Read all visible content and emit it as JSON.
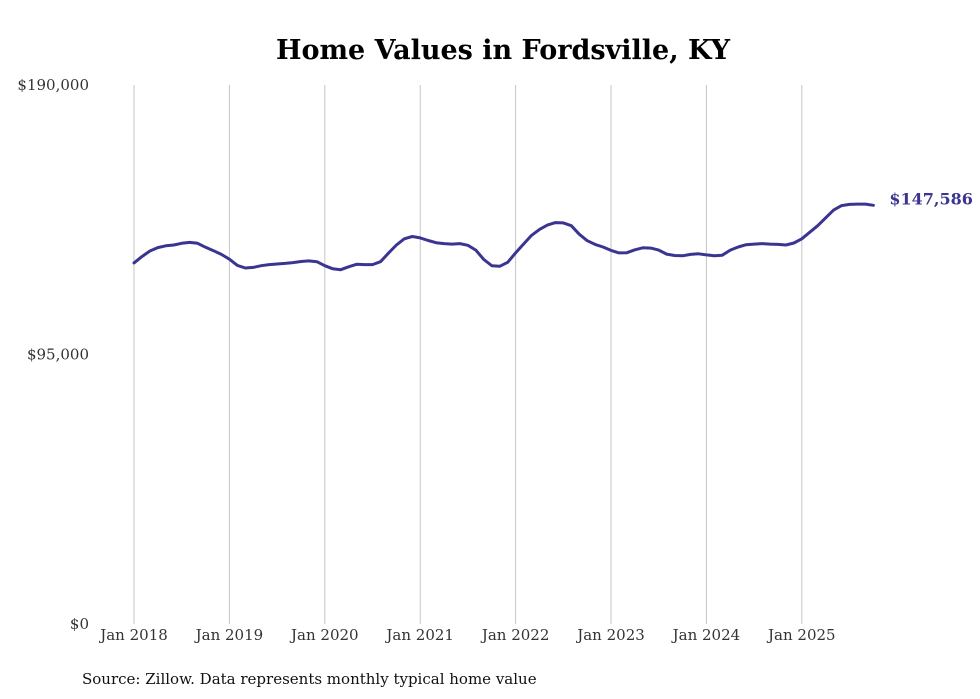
{
  "chart_data": {
    "type": "line",
    "title": "Home Values in Fordsville, KY",
    "xlabel": "",
    "ylabel": "",
    "ylim": [
      0,
      190000
    ],
    "y_ticks": [
      "$0",
      "$95,000",
      "$190,000"
    ],
    "x_ticks": [
      "Jan 2018",
      "Jan 2019",
      "Jan 2020",
      "Jan 2021",
      "Jan 2022",
      "Jan 2023",
      "Jan 2024",
      "Jan 2025"
    ],
    "grid": "vertical lines at each January",
    "line_color": "#3a3591",
    "end_label": "$147,586",
    "source_note": "Source: Zillow. Data represents monthly typical home value",
    "series": [
      {
        "x": [
          "2018-01",
          "2018-02",
          "2018-03",
          "2018-04",
          "2018-05",
          "2018-06",
          "2018-07",
          "2018-08",
          "2018-09",
          "2018-10",
          "2018-11",
          "2018-12",
          "2019-01",
          "2019-02",
          "2019-03",
          "2019-04",
          "2019-05",
          "2019-06",
          "2019-07",
          "2019-08",
          "2019-09",
          "2019-10",
          "2019-11",
          "2019-12",
          "2020-01",
          "2020-02",
          "2020-03",
          "2020-04",
          "2020-05",
          "2020-06",
          "2020-07",
          "2020-08",
          "2020-09",
          "2020-10",
          "2020-11",
          "2020-12",
          "2021-01",
          "2021-02",
          "2021-03",
          "2021-04",
          "2021-05",
          "2021-06",
          "2021-07",
          "2021-08",
          "2021-09",
          "2021-10",
          "2021-11",
          "2021-12",
          "2022-01",
          "2022-02",
          "2022-03",
          "2022-04",
          "2022-05",
          "2022-06",
          "2022-07",
          "2022-08",
          "2022-09",
          "2022-10",
          "2022-11",
          "2022-12",
          "2023-01",
          "2023-02",
          "2023-03",
          "2023-04",
          "2023-05",
          "2023-06",
          "2023-07",
          "2023-08",
          "2023-09",
          "2023-10",
          "2023-11",
          "2023-12",
          "2024-01",
          "2024-02",
          "2024-03",
          "2024-04",
          "2024-05",
          "2024-06",
          "2024-07",
          "2024-08",
          "2024-09",
          "2024-10",
          "2024-11",
          "2024-12",
          "2025-01",
          "2025-02",
          "2025-03",
          "2025-04",
          "2025-05",
          "2025-06",
          "2025-07",
          "2025-08",
          "2025-09",
          "2025-10"
        ],
        "values": [
          127300,
          129500,
          131500,
          132700,
          133300,
          133600,
          134200,
          134500,
          134200,
          132800,
          131600,
          130300,
          128600,
          126400,
          125500,
          125700,
          126300,
          126700,
          126900,
          127100,
          127400,
          127800,
          128000,
          127700,
          126300,
          125200,
          124900,
          125900,
          126800,
          126700,
          126700,
          127700,
          130700,
          133600,
          135800,
          136600,
          136100,
          135200,
          134400,
          134100,
          133900,
          134100,
          133500,
          131800,
          128500,
          126300,
          126100,
          127500,
          130800,
          133900,
          137000,
          139100,
          140600,
          141500,
          141400,
          140400,
          137400,
          135100,
          133800,
          132900,
          131700,
          130800,
          130900,
          131900,
          132600,
          132500,
          131800,
          130400,
          129900,
          129800,
          130300,
          130500,
          130100,
          129800,
          130000,
          131800,
          132900,
          133700,
          133900,
          134100,
          133900,
          133800,
          133600,
          134300,
          135800,
          138100,
          140400,
          143200,
          145900,
          147500,
          147900,
          148000,
          148000,
          147586
        ]
      }
    ]
  }
}
